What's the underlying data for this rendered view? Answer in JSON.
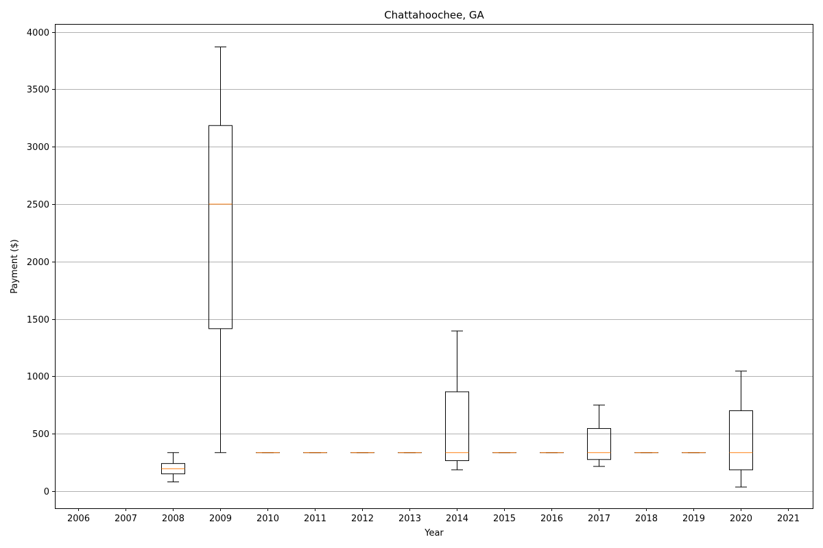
{
  "chart_data": {
    "type": "box",
    "title": "Chattahoochee, GA",
    "xlabel": "Year",
    "ylabel": "Payment ($)",
    "categories": [
      "2006",
      "2007",
      "2008",
      "2009",
      "2010",
      "2011",
      "2012",
      "2013",
      "2014",
      "2015",
      "2016",
      "2017",
      "2018",
      "2019",
      "2020",
      "2021"
    ],
    "ylim": [
      -150,
      4070
    ],
    "yticks": [
      0,
      500,
      1000,
      1500,
      2000,
      2500,
      3000,
      3500,
      4000
    ],
    "grid": "horizontal",
    "colors": {
      "box": "#000000",
      "median": "#ff7f0e",
      "grid": "#b0b0b0"
    },
    "boxes": [
      {
        "category": "2006",
        "data": null
      },
      {
        "category": "2007",
        "data": null
      },
      {
        "category": "2008",
        "data": {
          "whisker_low": 80,
          "q1": 150,
          "median": 195,
          "q3": 240,
          "whisker_high": 335
        }
      },
      {
        "category": "2009",
        "data": {
          "whisker_low": 335,
          "q1": 1415,
          "median": 2500,
          "q3": 3185,
          "whisker_high": 3870
        }
      },
      {
        "category": "2010",
        "data": {
          "whisker_low": 335,
          "q1": 335,
          "median": 335,
          "q3": 335,
          "whisker_high": 335
        }
      },
      {
        "category": "2011",
        "data": {
          "whisker_low": 335,
          "q1": 335,
          "median": 335,
          "q3": 335,
          "whisker_high": 335
        }
      },
      {
        "category": "2012",
        "data": {
          "whisker_low": 335,
          "q1": 335,
          "median": 335,
          "q3": 335,
          "whisker_high": 335
        }
      },
      {
        "category": "2013",
        "data": {
          "whisker_low": 335,
          "q1": 335,
          "median": 335,
          "q3": 335,
          "whisker_high": 335
        }
      },
      {
        "category": "2014",
        "data": {
          "whisker_low": 185,
          "q1": 265,
          "median": 335,
          "q3": 865,
          "whisker_high": 1395
        }
      },
      {
        "category": "2015",
        "data": {
          "whisker_low": 335,
          "q1": 335,
          "median": 335,
          "q3": 335,
          "whisker_high": 335
        }
      },
      {
        "category": "2016",
        "data": {
          "whisker_low": 335,
          "q1": 335,
          "median": 335,
          "q3": 335,
          "whisker_high": 335
        }
      },
      {
        "category": "2017",
        "data": {
          "whisker_low": 215,
          "q1": 275,
          "median": 335,
          "q3": 545,
          "whisker_high": 750
        }
      },
      {
        "category": "2018",
        "data": {
          "whisker_low": 335,
          "q1": 335,
          "median": 335,
          "q3": 335,
          "whisker_high": 335
        }
      },
      {
        "category": "2019",
        "data": {
          "whisker_low": 335,
          "q1": 335,
          "median": 335,
          "q3": 335,
          "whisker_high": 335
        }
      },
      {
        "category": "2020",
        "data": {
          "whisker_low": 35,
          "q1": 185,
          "median": 335,
          "q3": 700,
          "whisker_high": 1045
        }
      },
      {
        "category": "2021",
        "data": null
      }
    ]
  }
}
